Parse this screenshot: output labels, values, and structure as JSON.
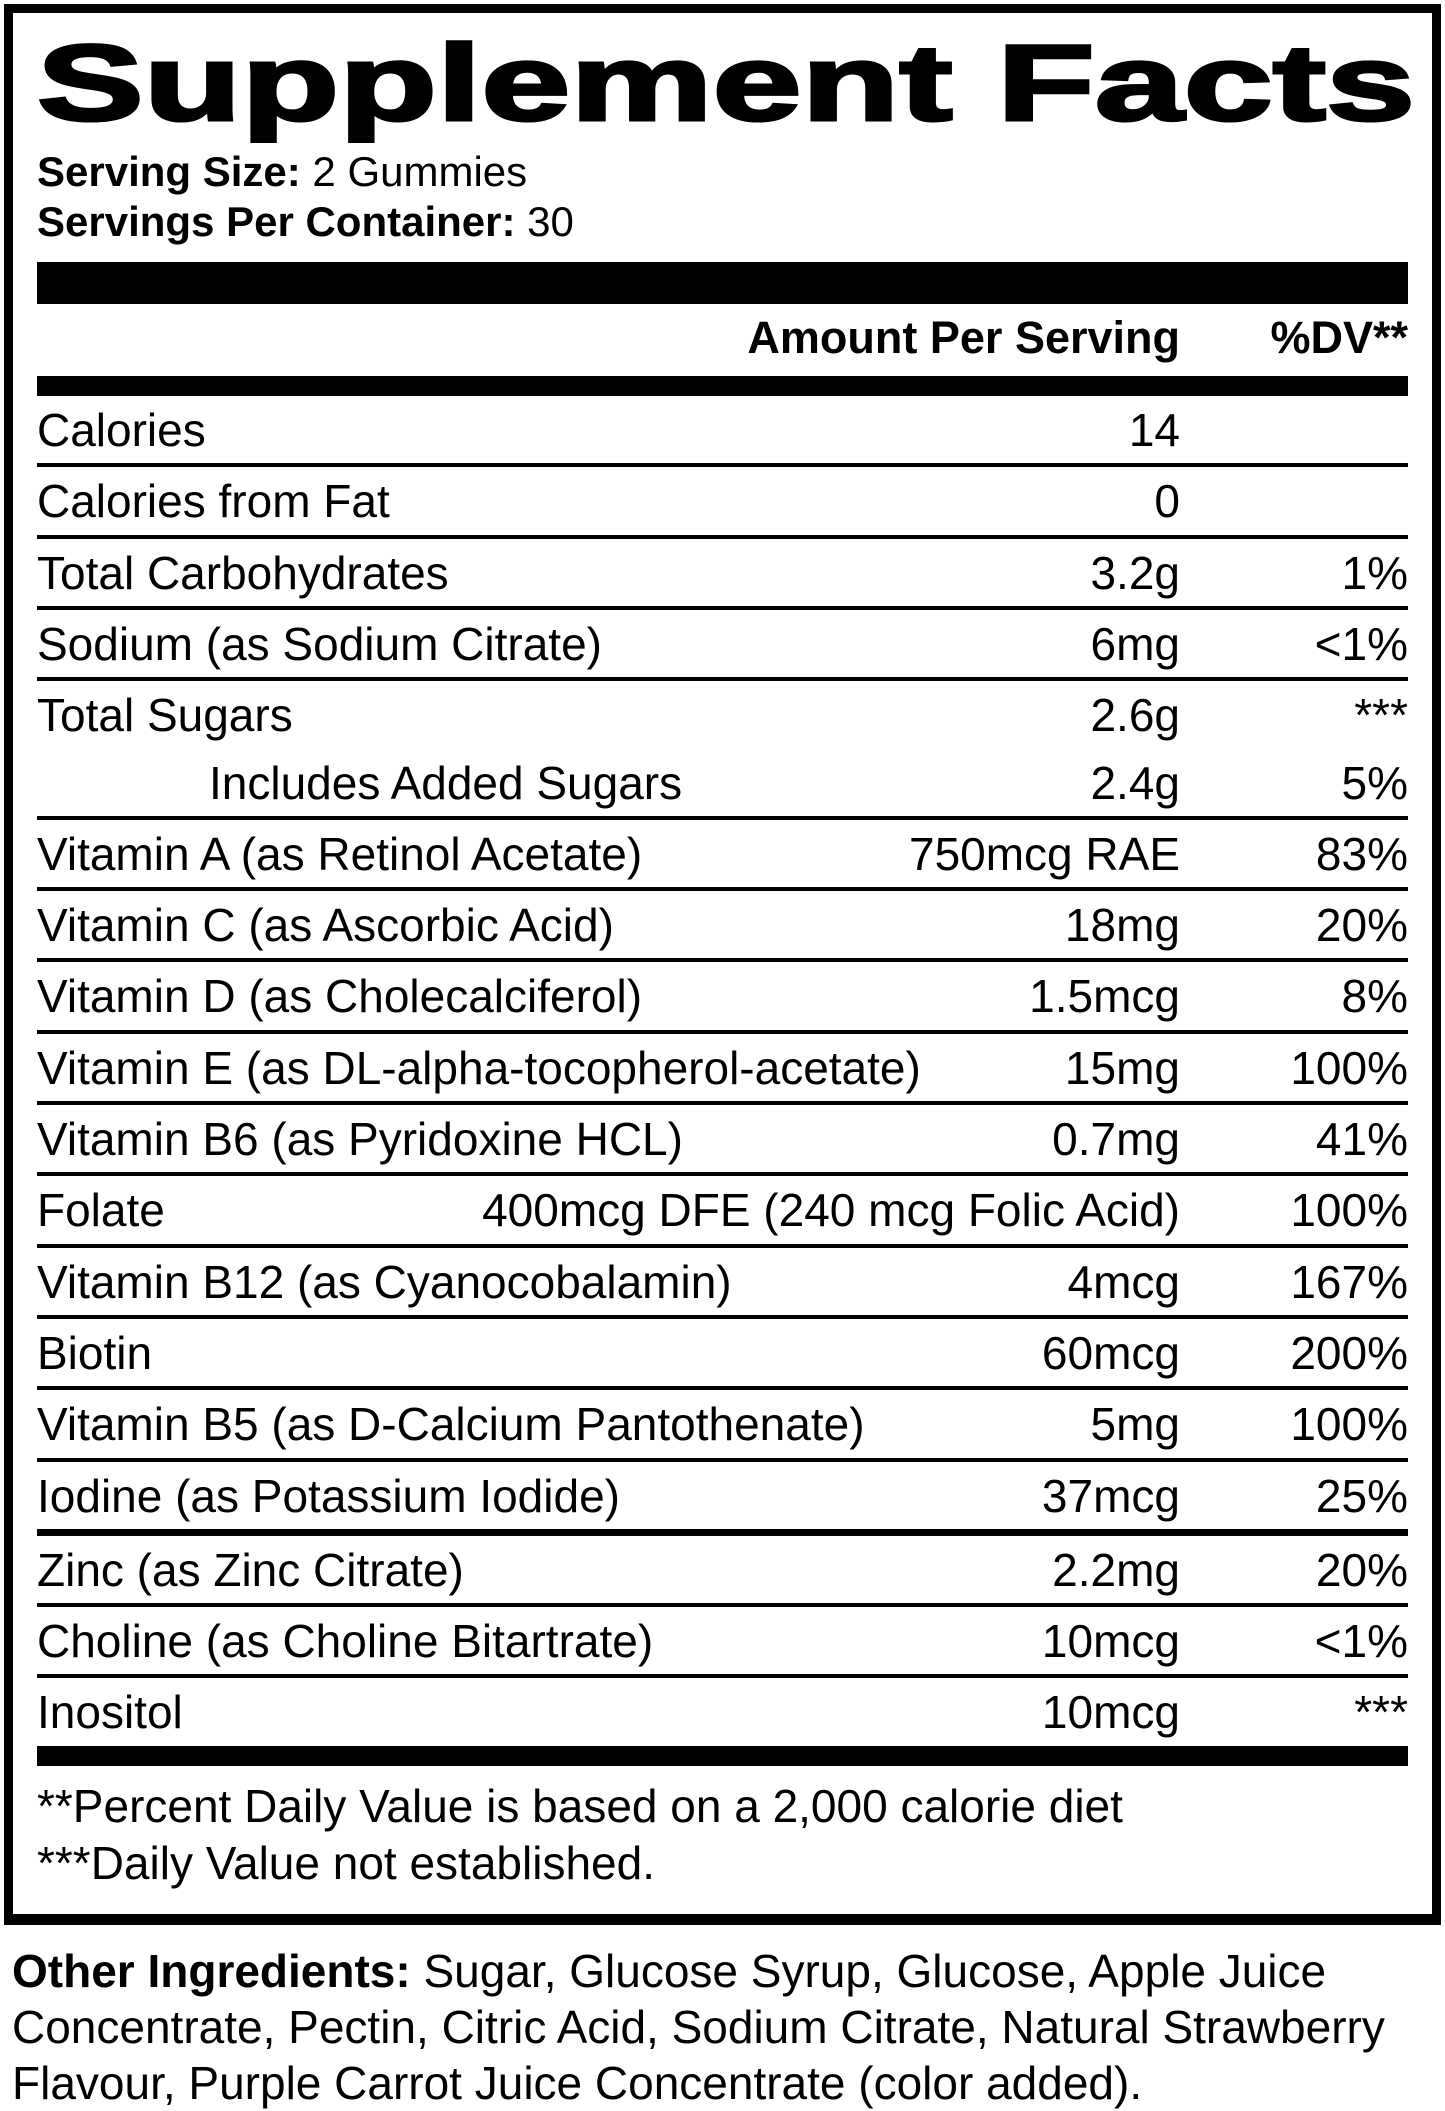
{
  "colors": {
    "text": "#000000",
    "background": "#ffffff"
  },
  "title": "Supplement Facts",
  "serving": {
    "size_label": "Serving Size:",
    "size_value": " 2 Gummies",
    "per_container_label": "Servings Per Container:",
    "per_container_value": " 30"
  },
  "table": {
    "amount_header": "Amount Per Serving",
    "dv_header": "%DV**",
    "rows": [
      {
        "name": "Calories",
        "amount": "14",
        "dv": "",
        "divider_above": "none"
      },
      {
        "name": "Calories from Fat",
        "amount": "0",
        "dv": "",
        "divider_above": "thin"
      },
      {
        "name": "Total Carbohydrates",
        "amount": "3.2g",
        "dv": "1%",
        "divider_above": "thin"
      },
      {
        "name": "Sodium (as Sodium Citrate)",
        "amount": "6mg",
        "dv": "<1%",
        "divider_above": "thin"
      },
      {
        "name": "Total Sugars",
        "amount": "2.6g",
        "dv": "***",
        "divider_above": "thin"
      },
      {
        "name": "Includes Added Sugars",
        "amount": "2.4g",
        "dv": "5%",
        "divider_above": "none",
        "indent": true
      },
      {
        "name": "Vitamin A (as Retinol Acetate)",
        "amount": "750mcg RAE",
        "dv": "83%",
        "divider_above": "thin"
      },
      {
        "name": "Vitamin C (as Ascorbic Acid)",
        "amount": "18mg",
        "dv": "20%",
        "divider_above": "thin"
      },
      {
        "name": "Vitamin D (as Cholecalciferol)",
        "amount": "1.5mcg",
        "dv": "8%",
        "divider_above": "thin"
      },
      {
        "name": "Vitamin E (as DL-alpha-tocopherol-acetate)",
        "amount": "15mg",
        "dv": "100%",
        "divider_above": "thin"
      },
      {
        "name": "Vitamin B6 (as Pyridoxine HCL)",
        "amount": "0.7mg",
        "dv": "41%",
        "divider_above": "thin"
      },
      {
        "name": "Folate",
        "amount": "400mcg DFE (240 mcg Folic Acid)",
        "dv": "100%",
        "divider_above": "thin"
      },
      {
        "name": "Vitamin B12 (as Cyanocobalamin)",
        "amount": "4mcg",
        "dv": "167%",
        "divider_above": "thin"
      },
      {
        "name": "Biotin",
        "amount": "60mcg",
        "dv": "200%",
        "divider_above": "thin"
      },
      {
        "name": "Vitamin B5 (as D-Calcium Pantothenate)",
        "amount": "5mg",
        "dv": "100%",
        "divider_above": "thin"
      },
      {
        "name": "Iodine (as Potassium Iodide)",
        "amount": "37mcg",
        "dv": "25%",
        "divider_above": "thin"
      },
      {
        "name": "Zinc (as Zinc Citrate)",
        "amount": "2.2mg",
        "dv": "20%",
        "divider_above": "medium"
      },
      {
        "name": "Choline (as Choline Bitartrate)",
        "amount": "10mcg",
        "dv": "<1%",
        "divider_above": "thin"
      },
      {
        "name": "Inositol",
        "amount": "10mcg",
        "dv": "***",
        "divider_above": "thin"
      }
    ]
  },
  "footnotes": [
    "**Percent Daily Value is based on a 2,000 calorie diet",
    "***Daily Value not established."
  ],
  "other_ingredients": {
    "label": "Other Ingredients:",
    "text": " Sugar, Glucose Syrup, Glucose, Apple Juice Concentrate, Pectin, Citric Acid, Sodium Citrate, Natural Strawberry Flavour, Purple Carrot Juice Concentrate (color added)."
  }
}
